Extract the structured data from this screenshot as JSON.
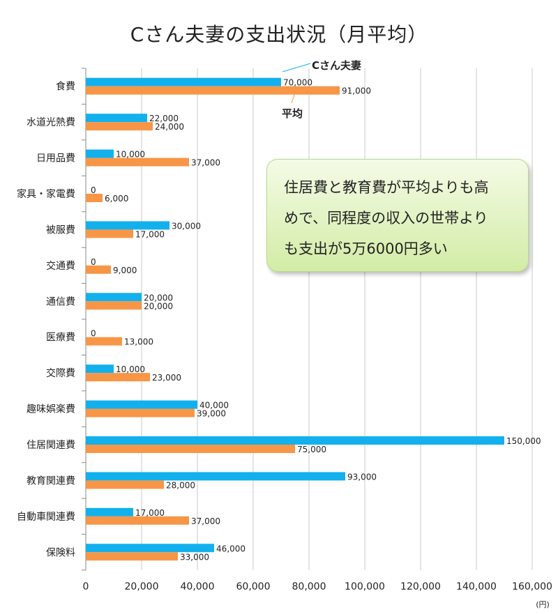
{
  "chart_data": {
    "type": "bar",
    "orientation": "horizontal",
    "title": "Cさん夫妻の支出状況（月平均）",
    "unit_label": "(円)",
    "xlim": [
      0,
      160000
    ],
    "x_ticks": [
      "0",
      "20,000",
      "40,000",
      "60,000",
      "80,000",
      "100,000",
      "120,000",
      "140,000",
      "160,000"
    ],
    "grid": "vertical",
    "legend_placement": "callouts near top bars",
    "categories": [
      "食費",
      "水道光熱費",
      "日用品費",
      "家具・家電費",
      "被服費",
      "交通費",
      "通信費",
      "医療費",
      "交際費",
      "趣味娯楽費",
      "住居関連費",
      "教育関連費",
      "自動車関連費",
      "保険料"
    ],
    "series": [
      {
        "name": "Cさん夫妻",
        "color": "#13b0ee",
        "values": [
          70000,
          22000,
          10000,
          0,
          30000,
          0,
          20000,
          0,
          10000,
          40000,
          150000,
          93000,
          17000,
          46000
        ],
        "labels": [
          "70,000",
          "22,000",
          "10,000",
          "0",
          "30,000",
          "0",
          "20,000",
          "0",
          "10,000",
          "40,000",
          "150,000",
          "93,000",
          "17,000",
          "46,000"
        ]
      },
      {
        "name": "平均",
        "color": "#f79646",
        "values": [
          91000,
          24000,
          37000,
          6000,
          17000,
          9000,
          20000,
          13000,
          23000,
          39000,
          75000,
          28000,
          37000,
          33000
        ],
        "labels": [
          "91,000",
          "24,000",
          "37,000",
          "6,000",
          "17,000",
          "9,000",
          "20,000",
          "13,000",
          "23,000",
          "39,000",
          "75,000",
          "28,000",
          "37,000",
          "33,000"
        ]
      }
    ]
  },
  "callout": {
    "lines": [
      "住居費と教育費が平均よりも高",
      "めで、同程度の収入の世帯より",
      "も支出が5万6000円多い"
    ],
    "color": "#d3eca6"
  }
}
